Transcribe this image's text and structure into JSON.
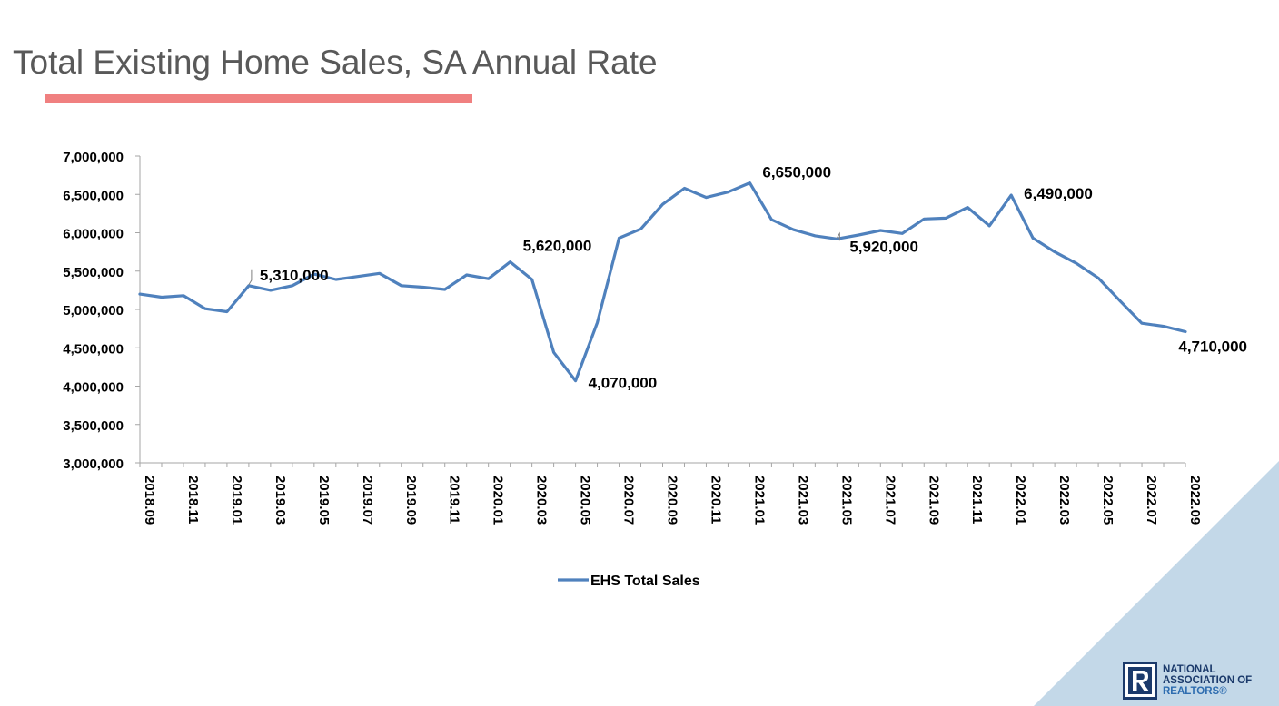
{
  "slide": {
    "title": "Total Existing Home Sales, SA Annual Rate"
  },
  "colors": {
    "series_line": "#4f81bd",
    "title_underline": "#f08080",
    "corner_triangle": "#c3d8e8",
    "logo_navy": "#1b3a6b",
    "logo_blue": "#2e6db0"
  },
  "logo": {
    "icon": "realtor-r-icon",
    "lines": [
      "NATIONAL",
      "ASSOCIATION OF",
      "REALTORS®"
    ]
  },
  "chart_data": {
    "type": "line",
    "title": "",
    "xlabel": "",
    "ylabel": "",
    "ylim": [
      3000000,
      7000000
    ],
    "yticks": [
      3000000,
      3500000,
      4000000,
      4500000,
      5000000,
      5500000,
      6000000,
      6500000,
      7000000
    ],
    "ytick_labels": [
      "3,000,000",
      "3,500,000",
      "4,000,000",
      "4,500,000",
      "5,000,000",
      "5,500,000",
      "6,000,000",
      "6,500,000",
      "7,000,000"
    ],
    "grid": false,
    "legend": "bottom",
    "x": [
      "2018.09",
      "2018.10",
      "2018.11",
      "2018.12",
      "2019.01",
      "2019.02",
      "2019.03",
      "2019.04",
      "2019.05",
      "2019.06",
      "2019.07",
      "2019.08",
      "2019.09",
      "2019.10",
      "2019.11",
      "2019.12",
      "2020.01",
      "2020.02",
      "2020.03",
      "2020.04",
      "2020.05",
      "2020.06",
      "2020.07",
      "2020.08",
      "2020.09",
      "2020.10",
      "2020.11",
      "2020.12",
      "2021.01",
      "2021.02",
      "2021.03",
      "2021.04",
      "2021.05",
      "2021.06",
      "2021.07",
      "2021.08",
      "2021.09",
      "2021.10",
      "2021.11",
      "2021.12",
      "2022.01",
      "2022.02",
      "2022.03",
      "2022.04",
      "2022.05",
      "2022.06",
      "2022.07",
      "2022.08",
      "2022.09"
    ],
    "x_tick_labels": [
      "2018.09",
      "2018.11",
      "2019.01",
      "2019.03",
      "2019.05",
      "2019.07",
      "2019.09",
      "2019.11",
      "2020.01",
      "2020.03",
      "2020.05",
      "2020.07",
      "2020.09",
      "2020.11",
      "2021.01",
      "2021.03",
      "2021.05",
      "2021.07",
      "2021.09",
      "2021.11",
      "2022.01",
      "2022.03",
      "2022.05",
      "2022.07",
      "2022.09"
    ],
    "series": [
      {
        "name": "EHS Total Sales",
        "values": [
          5200000,
          5160000,
          5180000,
          5010000,
          4970000,
          5310000,
          5250000,
          5310000,
          5460000,
          5390000,
          5430000,
          5470000,
          5310000,
          5290000,
          5260000,
          5450000,
          5400000,
          5620000,
          5390000,
          4440000,
          4070000,
          4830000,
          5930000,
          6050000,
          6370000,
          6580000,
          6460000,
          6530000,
          6650000,
          6170000,
          6040000,
          5960000,
          5920000,
          5970000,
          6030000,
          5990000,
          6180000,
          6190000,
          6330000,
          6090000,
          6490000,
          5930000,
          5750000,
          5600000,
          5410000,
          5110000,
          4820000,
          4780000,
          4710000
        ]
      }
    ],
    "annotations": [
      {
        "x": "2019.02",
        "value": 5310000,
        "label": "5,310,000"
      },
      {
        "x": "2020.02",
        "value": 5620000,
        "label": "5,620,000"
      },
      {
        "x": "2020.05",
        "value": 4070000,
        "label": "4,070,000"
      },
      {
        "x": "2021.01",
        "value": 6650000,
        "label": "6,650,000"
      },
      {
        "x": "2021.05",
        "value": 5920000,
        "label": "5,920,000"
      },
      {
        "x": "2022.01",
        "value": 6490000,
        "label": "6,490,000"
      },
      {
        "x": "2022.09",
        "value": 4710000,
        "label": "4,710,000"
      }
    ]
  }
}
